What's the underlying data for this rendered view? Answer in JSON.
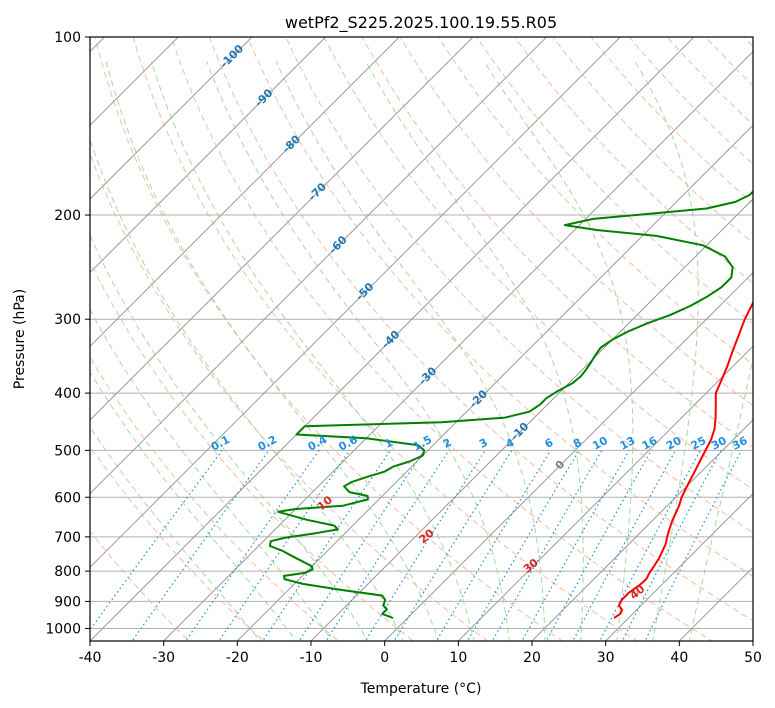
{
  "chart_data": {
    "type": "line",
    "title": "wetPf2_S225.2025.100.19.55.R05",
    "xlabel": "Temperature (°C)",
    "ylabel": "Pressure (hPa)",
    "xlim": [
      -40,
      50
    ],
    "ylim": [
      1050,
      100
    ],
    "y_scale": "log",
    "grid": true,
    "x_ticks": [
      -40,
      -30,
      -20,
      -10,
      0,
      10,
      20,
      30,
      40,
      50
    ],
    "y_ticks": [
      100,
      200,
      300,
      400,
      500,
      600,
      700,
      800,
      900,
      1000
    ],
    "colors": {
      "temperature": "#ff0000",
      "dewpoint": "#008000",
      "isotherm": "#999999",
      "dry_adiabat": "#f4a582",
      "moist_adiabat": "#8fd18f",
      "mixing_ratio": "#1f8fe0",
      "isotherm_label": "#1f77b4",
      "dry_adiabat_label": "#d62728",
      "zero_isotherm_label": "#808080"
    },
    "series": [
      {
        "key": "temperature",
        "points": [
          {
            "t": 28.0,
            "p": 960
          },
          {
            "t": 28.3,
            "p": 945
          },
          {
            "t": 28.0,
            "p": 930
          },
          {
            "t": 27.0,
            "p": 915
          },
          {
            "t": 26.6,
            "p": 895
          },
          {
            "t": 26.6,
            "p": 870
          },
          {
            "t": 27.0,
            "p": 845
          },
          {
            "t": 27.1,
            "p": 825
          },
          {
            "t": 26.7,
            "p": 805
          },
          {
            "t": 26.4,
            "p": 785
          },
          {
            "t": 26.0,
            "p": 760
          },
          {
            "t": 25.5,
            "p": 740
          },
          {
            "t": 25.0,
            "p": 720
          },
          {
            "t": 24.2,
            "p": 700
          },
          {
            "t": 23.5,
            "p": 680
          },
          {
            "t": 22.8,
            "p": 660
          },
          {
            "t": 22.2,
            "p": 640
          },
          {
            "t": 21.6,
            "p": 620
          },
          {
            "t": 20.8,
            "p": 600
          },
          {
            "t": 20.2,
            "p": 580
          },
          {
            "t": 19.6,
            "p": 560
          },
          {
            "t": 19.0,
            "p": 540
          },
          {
            "t": 18.0,
            "p": 510
          },
          {
            "t": 17.0,
            "p": 480
          },
          {
            "t": 16.0,
            "p": 460
          },
          {
            "t": 14.6,
            "p": 440
          },
          {
            "t": 13.0,
            "p": 420
          },
          {
            "t": 11.3,
            "p": 400
          },
          {
            "t": 10.3,
            "p": 380
          },
          {
            "t": 9.2,
            "p": 360
          },
          {
            "t": 7.9,
            "p": 340
          },
          {
            "t": 6.6,
            "p": 320
          },
          {
            "t": 5.2,
            "p": 300
          },
          {
            "t": 4.0,
            "p": 280
          },
          {
            "t": 2.8,
            "p": 260
          },
          {
            "t": 1.8,
            "p": 245
          },
          {
            "t": 1.8,
            "p": 235
          },
          {
            "t": 3.0,
            "p": 225
          },
          {
            "t": 4.9,
            "p": 215
          },
          {
            "t": 6.4,
            "p": 208
          },
          {
            "t": 7.3,
            "p": 200
          },
          {
            "t": 7.6,
            "p": 190
          },
          {
            "t": 7.9,
            "p": 180
          },
          {
            "t": 8.2,
            "p": 170
          },
          {
            "t": 8.4,
            "p": 160
          },
          {
            "t": 8.4,
            "p": 150
          },
          {
            "t": 8.0,
            "p": 140
          },
          {
            "t": 7.6,
            "p": 130
          },
          {
            "t": 7.4,
            "p": 125
          },
          {
            "t": 7.8,
            "p": 118
          },
          {
            "t": 8.0,
            "p": 110
          },
          {
            "t": 7.6,
            "p": 105
          },
          {
            "t": 7.2,
            "p": 100
          }
        ]
      },
      {
        "key": "dewpoint",
        "points": [
          {
            "t": -2.0,
            "p": 960
          },
          {
            "t": -4.0,
            "p": 945
          },
          {
            "t": -4.0,
            "p": 928
          },
          {
            "t": -5.0,
            "p": 915
          },
          {
            "t": -5.5,
            "p": 895
          },
          {
            "t": -6.5,
            "p": 880
          },
          {
            "t": -13.0,
            "p": 860
          },
          {
            "t": -19.0,
            "p": 840
          },
          {
            "t": -22.0,
            "p": 825
          },
          {
            "t": -22.5,
            "p": 815
          },
          {
            "t": -20.0,
            "p": 805
          },
          {
            "t": -19.5,
            "p": 795
          },
          {
            "t": -20.0,
            "p": 785
          },
          {
            "t": -22.0,
            "p": 770
          },
          {
            "t": -24.0,
            "p": 755
          },
          {
            "t": -26.0,
            "p": 740
          },
          {
            "t": -28.5,
            "p": 725
          },
          {
            "t": -29.0,
            "p": 712
          },
          {
            "t": -27.5,
            "p": 702
          },
          {
            "t": -24.0,
            "p": 690
          },
          {
            "t": -21.5,
            "p": 680
          },
          {
            "t": -22.5,
            "p": 670
          },
          {
            "t": -27.0,
            "p": 655
          },
          {
            "t": -32.0,
            "p": 635
          },
          {
            "t": -30.0,
            "p": 628
          },
          {
            "t": -24.0,
            "p": 620
          },
          {
            "t": -21.5,
            "p": 605
          },
          {
            "t": -22.0,
            "p": 597
          },
          {
            "t": -25.0,
            "p": 588
          },
          {
            "t": -26.5,
            "p": 575
          },
          {
            "t": -26.0,
            "p": 565
          },
          {
            "t": -24.5,
            "p": 553
          },
          {
            "t": -23.0,
            "p": 543
          },
          {
            "t": -22.5,
            "p": 532
          },
          {
            "t": -21.0,
            "p": 522
          },
          {
            "t": -20.0,
            "p": 510
          },
          {
            "t": -20.5,
            "p": 500
          },
          {
            "t": -22.0,
            "p": 490
          },
          {
            "t": -30.0,
            "p": 477
          },
          {
            "t": -40.0,
            "p": 470
          },
          {
            "t": -40.0,
            "p": 455
          },
          {
            "t": -35.0,
            "p": 453
          },
          {
            "t": -22.0,
            "p": 448
          },
          {
            "t": -14.0,
            "p": 440
          },
          {
            "t": -11.5,
            "p": 430
          },
          {
            "t": -11.0,
            "p": 418
          },
          {
            "t": -11.0,
            "p": 408
          },
          {
            "t": -10.5,
            "p": 398
          },
          {
            "t": -9.5,
            "p": 385
          },
          {
            "t": -9.3,
            "p": 375
          },
          {
            "t": -9.5,
            "p": 365
          },
          {
            "t": -9.8,
            "p": 355
          },
          {
            "t": -10.2,
            "p": 345
          },
          {
            "t": -10.5,
            "p": 335
          },
          {
            "t": -10.0,
            "p": 325
          },
          {
            "t": -9.0,
            "p": 315
          },
          {
            "t": -7.5,
            "p": 305
          },
          {
            "t": -5.5,
            "p": 295
          },
          {
            "t": -4.0,
            "p": 285
          },
          {
            "t": -3.0,
            "p": 275
          },
          {
            "t": -2.3,
            "p": 265
          },
          {
            "t": -2.3,
            "p": 255
          },
          {
            "t": -3.5,
            "p": 245
          },
          {
            "t": -6.0,
            "p": 235
          },
          {
            "t": -10.5,
            "p": 225
          },
          {
            "t": -18.0,
            "p": 217
          },
          {
            "t": -27.0,
            "p": 212
          },
          {
            "t": -32.0,
            "p": 208
          },
          {
            "t": -29.0,
            "p": 203
          },
          {
            "t": -22.0,
            "p": 199
          },
          {
            "t": -15.0,
            "p": 195
          },
          {
            "t": -12.0,
            "p": 190
          },
          {
            "t": -11.0,
            "p": 185
          },
          {
            "t": -11.0,
            "p": 180
          },
          {
            "t": -12.0,
            "p": 175
          },
          {
            "t": -12.5,
            "p": 170
          },
          {
            "t": -12.0,
            "p": 165
          },
          {
            "t": -11.2,
            "p": 158
          },
          {
            "t": -10.5,
            "p": 150
          },
          {
            "t": -9.5,
            "p": 143
          },
          {
            "t": -8.3,
            "p": 137
          },
          {
            "t": -7.0,
            "p": 132
          },
          {
            "t": -6.0,
            "p": 128
          },
          {
            "t": -5.5,
            "p": 123
          },
          {
            "t": -4.8,
            "p": 118
          },
          {
            "t": -3.8,
            "p": 112
          },
          {
            "t": -2.5,
            "p": 106
          },
          {
            "t": -1.0,
            "p": 100
          }
        ]
      }
    ],
    "isotherm_labels": [
      "-100",
      "-90",
      "-80",
      "-70",
      "-60",
      "-50",
      "-40",
      "-30",
      "-20",
      "-10",
      "0"
    ],
    "isotherm_label_values": [
      -100,
      -90,
      -80,
      -70,
      -60,
      -50,
      -40,
      -30,
      -20,
      -10,
      0
    ],
    "mixing_ratio_labels": [
      "0.1",
      "0.2",
      "0.4",
      "0.6",
      "1",
      "1.5",
      "2",
      "3",
      "4",
      "6",
      "8",
      "10",
      "13",
      "16",
      "20",
      "25",
      "30",
      "36"
    ],
    "mixing_ratio_values": [
      0.1,
      0.2,
      0.4,
      0.6,
      1,
      1.5,
      2,
      3,
      4,
      6,
      8,
      10,
      13,
      16,
      20,
      25,
      30,
      36
    ],
    "dry_adiabat_labels": [
      "10",
      "20",
      "30",
      "40"
    ],
    "dry_adiabat_label_values": [
      10,
      20,
      30,
      40
    ]
  }
}
